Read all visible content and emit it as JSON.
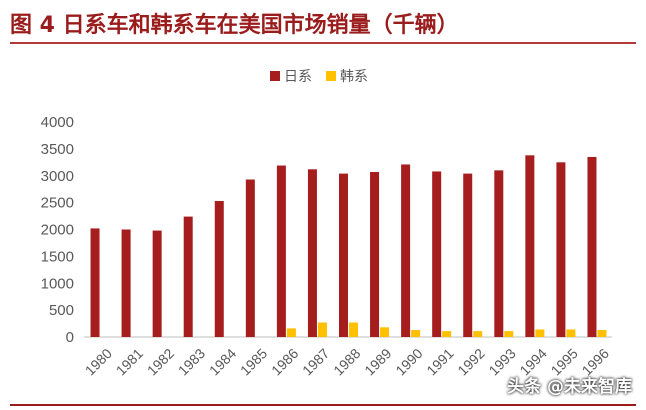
{
  "title": "图 4  日系车和韩系车在美国市场销量（千辆）",
  "watermark": "头条 @未来智库",
  "colors": {
    "accent": "#9a1c1c",
    "japan": "#a51d1d",
    "korea": "#ffc000",
    "axis_text": "#595959"
  },
  "chart_data": {
    "type": "bar",
    "categories": [
      "1980",
      "1981",
      "1982",
      "1983",
      "1984",
      "1985",
      "1986",
      "1987",
      "1988",
      "1989",
      "1990",
      "1991",
      "1992",
      "1993",
      "1994",
      "1995",
      "1996"
    ],
    "series": [
      {
        "name": "日系",
        "values": [
          2020,
          2000,
          1980,
          2240,
          2530,
          2930,
          3190,
          3120,
          3040,
          3070,
          3210,
          3080,
          3040,
          3100,
          3380,
          3250,
          3350
        ]
      },
      {
        "name": "韩系",
        "values": [
          0,
          0,
          0,
          0,
          0,
          0,
          160,
          270,
          270,
          180,
          130,
          110,
          110,
          110,
          140,
          140,
          130
        ]
      }
    ],
    "ylim": [
      0,
      4000
    ],
    "yticks": [
      "0",
      "500",
      "1000",
      "1500",
      "2000",
      "2500",
      "3000",
      "3500",
      "4000"
    ],
    "legend_position": "top-center",
    "grid": false
  }
}
